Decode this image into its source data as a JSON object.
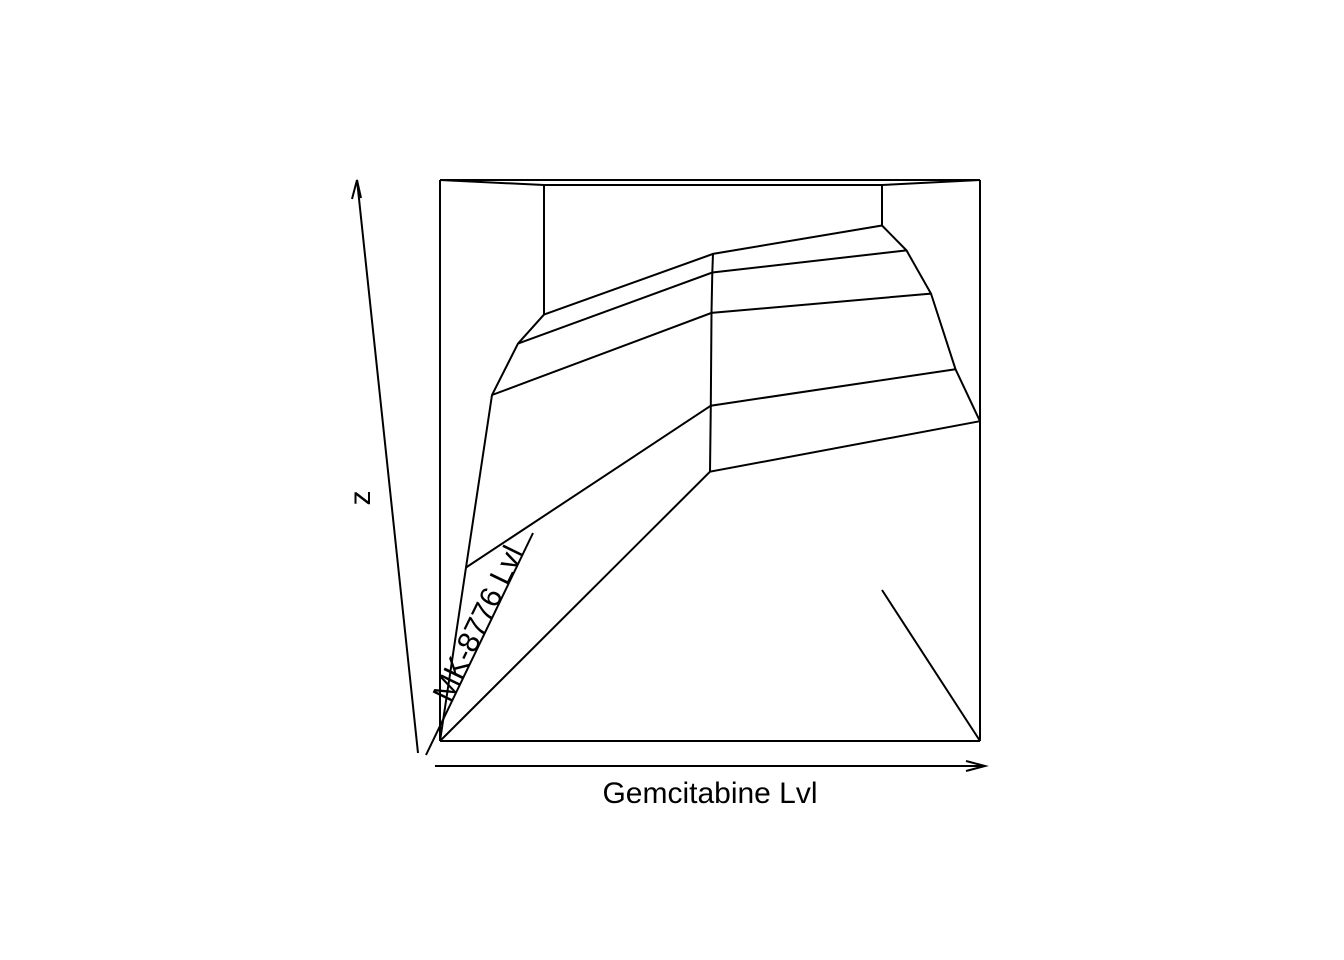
{
  "chart_data": {
    "type": "surface",
    "view": "persp",
    "xlabel": "Gemcitabine Lvl",
    "ylabel": "MK-8776 Lvl",
    "zlabel": "z",
    "x_levels": 3,
    "y_levels": 5,
    "surface_z_relative": [
      [
        0.0,
        0.48,
        0.57
      ],
      [
        0.26,
        0.57,
        0.64
      ],
      [
        0.56,
        0.73,
        0.77
      ],
      [
        0.64,
        0.8,
        0.85
      ],
      [
        0.68,
        0.83,
        0.9
      ]
    ],
    "axes_arrows": true,
    "box": true
  }
}
